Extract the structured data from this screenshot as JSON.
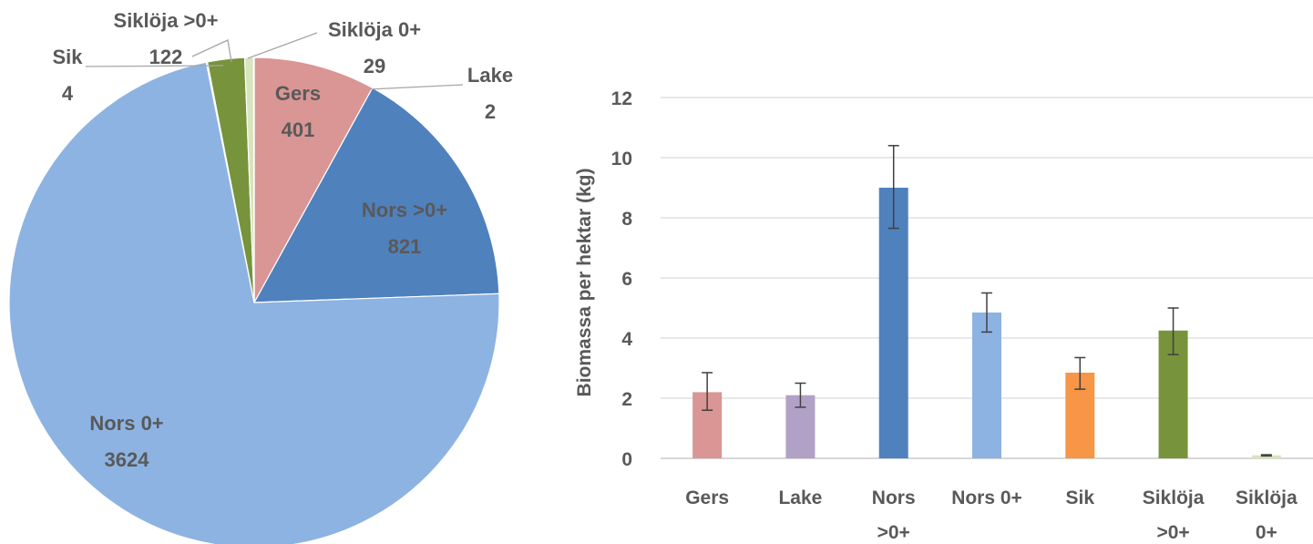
{
  "chart_data": [
    {
      "type": "pie",
      "slices": [
        {
          "label": "Gers",
          "value": 401,
          "color": "#d99694"
        },
        {
          "label": "Nors >0+",
          "value": 821,
          "color": "#4f81bd"
        },
        {
          "label": "Nors 0+",
          "value": 3624,
          "color": "#8db3e2"
        },
        {
          "label": "Sik",
          "value": 4,
          "color": "#f79646"
        },
        {
          "label": "Siklöja >0+",
          "value": 122,
          "color": "#77933c"
        },
        {
          "label": "Siklöja 0+",
          "value": 29,
          "color": "#d7e4bd"
        },
        {
          "label": "Lake",
          "value": 2,
          "color": "#b2a1c7"
        }
      ]
    },
    {
      "type": "bar",
      "categories": [
        "Gers",
        "Lake",
        "Nors >0+",
        "Nors 0+",
        "Sik",
        "Siklöja >0+",
        "Siklöja 0+"
      ],
      "category_lines": [
        [
          "Gers"
        ],
        [
          "Lake"
        ],
        [
          "Nors",
          ">0+"
        ],
        [
          "Nors 0+"
        ],
        [
          "Sik"
        ],
        [
          "Siklöja",
          ">0+"
        ],
        [
          "Siklöja",
          "0+"
        ]
      ],
      "values": [
        2.2,
        2.1,
        9.0,
        4.85,
        2.85,
        4.25,
        0.1
      ],
      "error_low": [
        1.6,
        1.7,
        7.65,
        4.2,
        2.3,
        3.45,
        0.08
      ],
      "error_high": [
        2.85,
        2.5,
        10.4,
        5.5,
        3.35,
        5.0,
        0.12
      ],
      "colors": [
        "#d99694",
        "#b2a1c7",
        "#4f81bd",
        "#8db3e2",
        "#f79646",
        "#77933c",
        "#d7e4bd"
      ],
      "ylabel": "Biomassa per hektar (kg)",
      "ylim": [
        0,
        12
      ],
      "yticks": [
        0,
        2,
        4,
        6,
        8,
        10,
        12
      ],
      "grid": true
    }
  ]
}
